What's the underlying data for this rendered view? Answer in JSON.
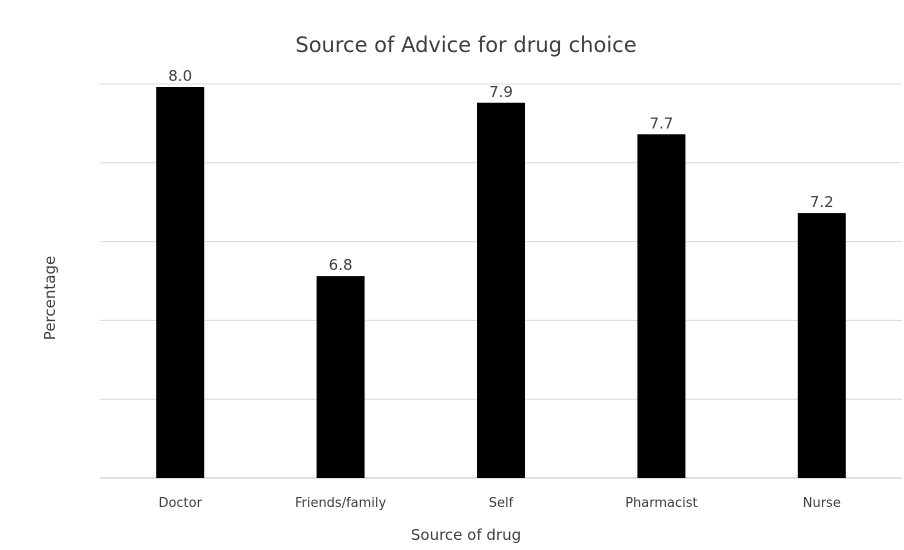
{
  "chart_data": {
    "type": "bar",
    "title": "Source of Advice for drug choice",
    "xlabel": "Source of drug",
    "ylabel": "Percentage",
    "categories": [
      "Doctor",
      "Friends/family",
      "Self",
      "Pharmacist",
      "Nurse"
    ],
    "values": [
      8.0,
      6.8,
      7.9,
      7.7,
      7.2
    ],
    "data_labels": [
      "8.0",
      "6.8",
      "7.9",
      "7.7",
      "7.2"
    ],
    "ylim": [
      5.5,
      8.0
    ],
    "grid": true,
    "legend": "none",
    "colors": {
      "bar": "#000000",
      "grid": "#d9d9d9",
      "text": "#404040"
    }
  }
}
